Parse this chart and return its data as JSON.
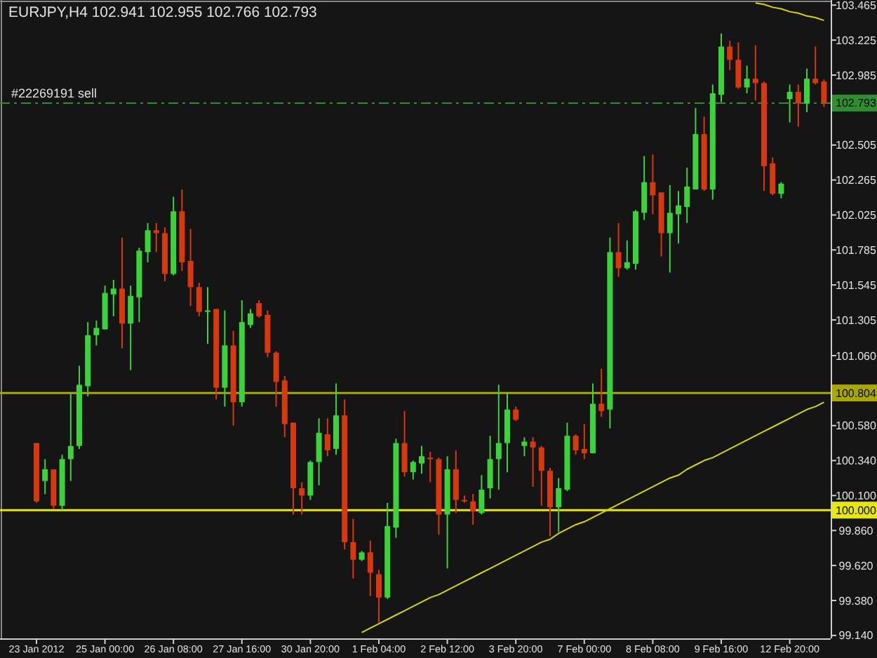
{
  "chart_data": {
    "type": "candlestick",
    "title": "EURJPY,H4  102.941 102.955 102.766 102.793",
    "categories": [
      "23 Jan 2012",
      null,
      null,
      null,
      null,
      null,
      null,
      null,
      "25 Jan 00:00",
      null,
      null,
      null,
      null,
      null,
      null,
      null,
      "26 Jan 08:00",
      null,
      null,
      null,
      null,
      null,
      null,
      null,
      "27 Jan 16:00",
      null,
      null,
      null,
      null,
      null,
      null,
      null,
      "30 Jan 20:00",
      null,
      null,
      null,
      null,
      null,
      null,
      null,
      "1 Feb 04:00",
      null,
      null,
      null,
      null,
      null,
      null,
      null,
      "2 Feb 12:00",
      null,
      null,
      null,
      null,
      null,
      null,
      null,
      "3 Feb 20:00",
      null,
      null,
      null,
      null,
      null,
      null,
      null,
      "7 Feb 00:00",
      null,
      null,
      null,
      null,
      null,
      null,
      null,
      "8 Feb 08:00",
      null,
      null,
      null,
      null,
      null,
      null,
      null,
      "9 Feb 16:00",
      null,
      null,
      null,
      null,
      null,
      null,
      null,
      "12 Feb 20:00",
      null,
      null,
      null,
      null
    ],
    "ohlc": [
      [
        100.46,
        100.46,
        100.05,
        100.06
      ],
      [
        100.2,
        100.35,
        100.11,
        100.28
      ],
      [
        100.28,
        100.28,
        100.01,
        100.03
      ],
      [
        100.03,
        100.38,
        100.0,
        100.35
      ],
      [
        100.35,
        100.8,
        100.2,
        100.44
      ],
      [
        100.44,
        100.99,
        100.42,
        100.86
      ],
      [
        100.85,
        101.29,
        100.78,
        101.2
      ],
      [
        101.2,
        101.3,
        101.13,
        101.25
      ],
      [
        101.24,
        101.54,
        101.24,
        101.49
      ],
      [
        101.48,
        101.58,
        101.33,
        101.52
      ],
      [
        101.52,
        101.87,
        101.11,
        101.28
      ],
      [
        101.28,
        101.54,
        100.96,
        101.47
      ],
      [
        101.46,
        101.8,
        101.29,
        101.78
      ],
      [
        101.77,
        101.97,
        101.7,
        101.92
      ],
      [
        101.92,
        101.97,
        101.77,
        101.9
      ],
      [
        101.9,
        101.94,
        101.57,
        101.62
      ],
      [
        101.62,
        102.15,
        101.61,
        102.05
      ],
      [
        102.05,
        102.2,
        101.64,
        101.7
      ],
      [
        101.71,
        101.93,
        101.4,
        101.53
      ],
      [
        101.53,
        101.56,
        101.33,
        101.36
      ],
      [
        101.36,
        101.53,
        101.14,
        101.37
      ],
      [
        101.38,
        101.38,
        100.76,
        100.84
      ],
      [
        100.84,
        101.37,
        100.71,
        101.13
      ],
      [
        101.13,
        101.23,
        100.58,
        100.74
      ],
      [
        100.74,
        101.44,
        100.71,
        101.29
      ],
      [
        101.27,
        101.38,
        101.25,
        101.35
      ],
      [
        101.42,
        101.44,
        101.32,
        101.33
      ],
      [
        101.34,
        101.37,
        101.05,
        101.08
      ],
      [
        101.08,
        101.09,
        100.71,
        100.88
      ],
      [
        100.89,
        100.92,
        100.5,
        100.59
      ],
      [
        100.6,
        100.6,
        99.97,
        100.15
      ],
      [
        100.15,
        100.19,
        99.97,
        100.1
      ],
      [
        100.1,
        100.34,
        100.07,
        100.33
      ],
      [
        100.33,
        100.63,
        100.17,
        100.53
      ],
      [
        100.52,
        100.63,
        100.37,
        100.41
      ],
      [
        100.42,
        100.87,
        100.38,
        100.65
      ],
      [
        100.65,
        100.76,
        99.73,
        99.78
      ],
      [
        99.78,
        99.94,
        99.53,
        99.66
      ],
      [
        99.66,
        99.72,
        99.65,
        99.71
      ],
      [
        99.71,
        99.79,
        99.41,
        99.57
      ],
      [
        99.56,
        99.59,
        99.23,
        99.4
      ],
      [
        99.4,
        100.05,
        99.39,
        99.89
      ],
      [
        99.88,
        100.49,
        99.81,
        100.46
      ],
      [
        100.46,
        100.68,
        100.23,
        100.26
      ],
      [
        100.26,
        100.34,
        100.21,
        100.33
      ],
      [
        100.32,
        100.44,
        100.25,
        100.37
      ],
      [
        100.36,
        100.4,
        100.19,
        100.35
      ],
      [
        100.35,
        100.36,
        99.83,
        99.97
      ],
      [
        99.97,
        100.37,
        99.6,
        100.28
      ],
      [
        100.28,
        100.41,
        99.98,
        100.07
      ],
      [
        100.07,
        100.1,
        100.05,
        100.06
      ],
      [
        100.06,
        100.11,
        99.9,
        99.99
      ],
      [
        99.98,
        100.24,
        99.97,
        100.14
      ],
      [
        100.15,
        100.51,
        100.08,
        100.35
      ],
      [
        100.35,
        100.86,
        100.14,
        100.46
      ],
      [
        100.46,
        100.8,
        100.26,
        100.69
      ],
      [
        100.69,
        100.71,
        100.61,
        100.62
      ],
      [
        100.44,
        100.5,
        100.37,
        100.47
      ],
      [
        100.47,
        100.5,
        100.16,
        100.43
      ],
      [
        100.43,
        100.44,
        100.03,
        100.27
      ],
      [
        100.27,
        100.29,
        99.82,
        100.02
      ],
      [
        100.02,
        100.22,
        99.85,
        100.15
      ],
      [
        100.14,
        100.6,
        100.13,
        100.51
      ],
      [
        100.51,
        100.52,
        100.38,
        100.41
      ],
      [
        100.42,
        100.59,
        100.35,
        100.39
      ],
      [
        100.39,
        100.87,
        100.39,
        100.73
      ],
      [
        100.73,
        100.97,
        100.64,
        100.68
      ],
      [
        100.69,
        101.87,
        100.56,
        101.77
      ],
      [
        101.77,
        101.97,
        101.6,
        101.66
      ],
      [
        101.66,
        101.85,
        101.65,
        101.7
      ],
      [
        101.69,
        102.06,
        101.65,
        102.05
      ],
      [
        102.04,
        102.43,
        101.99,
        102.25
      ],
      [
        102.25,
        102.44,
        102.03,
        102.16
      ],
      [
        102.18,
        102.18,
        101.74,
        101.9
      ],
      [
        101.9,
        102.23,
        101.63,
        102.04
      ],
      [
        102.03,
        102.19,
        101.83,
        102.09
      ],
      [
        102.08,
        102.35,
        101.97,
        102.22
      ],
      [
        102.2,
        102.76,
        102.2,
        102.58
      ],
      [
        102.58,
        102.7,
        102.19,
        102.2
      ],
      [
        102.2,
        102.92,
        102.13,
        102.86
      ],
      [
        102.85,
        103.27,
        102.8,
        103.18
      ],
      [
        103.18,
        103.22,
        103.02,
        103.09
      ],
      [
        103.09,
        103.21,
        102.89,
        102.9
      ],
      [
        102.9,
        103.05,
        102.86,
        102.96
      ],
      [
        102.96,
        103.19,
        102.81,
        102.93
      ],
      [
        102.93,
        102.94,
        102.19,
        102.36
      ],
      [
        102.38,
        102.42,
        102.16,
        102.17
      ],
      [
        102.17,
        102.25,
        102.14,
        102.24
      ],
      [
        102.82,
        102.92,
        102.66,
        102.87
      ],
      [
        102.87,
        102.92,
        102.63,
        102.79
      ],
      [
        102.79,
        103.03,
        102.73,
        102.96
      ],
      [
        102.96,
        103.18,
        102.92,
        102.93
      ],
      [
        102.941,
        102.955,
        102.766,
        102.793
      ]
    ],
    "colors": [
      "#d8380e",
      "#3cd23c",
      "#d8380e",
      "#3cd23c",
      "#3cd23c",
      "#3cd23c",
      "#3cd23c",
      "#3cd23c",
      "#3cd23c",
      "#3cd23c",
      "#d8380e",
      "#3cd23c",
      "#3cd23c",
      "#3cd23c",
      "#d8380e",
      "#d8380e",
      "#3cd23c",
      "#d8380e",
      "#d8380e",
      "#d8380e",
      "#3cd23c",
      "#d8380e",
      "#3cd23c",
      "#d8380e",
      "#3cd23c",
      "#3cd23c",
      "#d8380e",
      "#d8380e",
      "#d8380e",
      "#d8380e",
      "#d8380e",
      "#d8380e",
      "#3cd23c",
      "#3cd23c",
      "#d8380e",
      "#3cd23c",
      "#d8380e",
      "#d8380e",
      "#3cd23c",
      "#d8380e",
      "#d8380e",
      "#3cd23c",
      "#3cd23c",
      "#d8380e",
      "#3cd23c",
      "#3cd23c",
      "#d8380e",
      "#d8380e",
      "#3cd23c",
      "#d8380e",
      "#d8380e",
      "#d8380e",
      "#3cd23c",
      "#3cd23c",
      "#3cd23c",
      "#3cd23c",
      "#d8380e",
      "#3cd23c",
      "#d8380e",
      "#d8380e",
      "#d8380e",
      "#3cd23c",
      "#3cd23c",
      "#d8380e",
      "#d8380e",
      "#3cd23c",
      "#d8380e",
      "#3cd23c",
      "#d8380e",
      "#3cd23c",
      "#3cd23c",
      "#3cd23c",
      "#d8380e",
      "#d8380e",
      "#3cd23c",
      "#3cd23c",
      "#3cd23c",
      "#3cd23c",
      "#d8380e",
      "#3cd23c",
      "#3cd23c",
      "#d8380e",
      "#d8380e",
      "#3cd23c",
      "#d8380e",
      "#d8380e",
      "#d8380e",
      "#3cd23c",
      "#3cd23c",
      "#d8380e",
      "#3cd23c",
      "#d8380e",
      "#d8380e"
    ],
    "series": [
      {
        "type": "line",
        "color": "#d6d600",
        "values": [
          null,
          null,
          null,
          null,
          null,
          null,
          null,
          null,
          null,
          null,
          null,
          null,
          null,
          null,
          null,
          null,
          null,
          null,
          null,
          null,
          null,
          null,
          null,
          null,
          null,
          null,
          null,
          null,
          null,
          null,
          null,
          null,
          null,
          null,
          null,
          null,
          null,
          null,
          99.16,
          99.19,
          99.22,
          99.25,
          99.28,
          99.31,
          99.34,
          99.37,
          99.4,
          99.42,
          99.45,
          99.48,
          99.51,
          99.54,
          99.57,
          99.6,
          99.63,
          99.66,
          99.69,
          99.72,
          99.75,
          99.78,
          99.8,
          99.84,
          99.87,
          99.9,
          99.92,
          99.95,
          99.98,
          100.01,
          100.04,
          100.07,
          100.1,
          100.13,
          100.16,
          100.19,
          100.22,
          100.24,
          100.28,
          100.31,
          100.34,
          100.36,
          100.39,
          100.42,
          100.45,
          100.48,
          100.51,
          100.54,
          100.57,
          100.6,
          100.63,
          100.66,
          100.69,
          100.71,
          100.74
        ]
      },
      {
        "type": "line",
        "color": "#d6d600",
        "values": [
          null,
          null,
          null,
          null,
          null,
          null,
          null,
          null,
          null,
          null,
          null,
          null,
          null,
          null,
          null,
          null,
          null,
          null,
          null,
          null,
          null,
          null,
          null,
          null,
          null,
          null,
          null,
          null,
          null,
          null,
          null,
          null,
          null,
          null,
          null,
          null,
          null,
          null,
          null,
          null,
          null,
          null,
          null,
          null,
          null,
          null,
          null,
          null,
          null,
          null,
          null,
          null,
          null,
          null,
          null,
          null,
          null,
          null,
          null,
          null,
          null,
          null,
          null,
          null,
          null,
          null,
          null,
          null,
          null,
          null,
          null,
          null,
          null,
          null,
          null,
          null,
          null,
          null,
          null,
          null,
          null,
          null,
          null,
          null,
          103.48,
          103.47,
          103.45,
          103.44,
          103.42,
          103.41,
          103.39,
          103.38,
          103.36
        ]
      }
    ],
    "ylim": [
      99.12,
      103.5
    ],
    "yticks": [
      103.465,
      103.225,
      102.985,
      102.505,
      102.265,
      102.025,
      101.785,
      101.545,
      101.305,
      {
        "value": 101.06,
        "label": "101.060"
      },
      {
        "value": 100.58,
        "label": "100.580"
      },
      {
        "value": 100.34,
        "label": "100.340"
      },
      {
        "value": 100.1,
        "label": "100.100"
      },
      {
        "value": 99.86,
        "label": "99.860"
      },
      {
        "value": 99.62,
        "label": "99.620"
      },
      {
        "value": 99.38,
        "label": "99.380"
      },
      {
        "value": 99.14,
        "label": "99.140"
      }
    ],
    "ref_lines": [
      {
        "axis": "y",
        "value": 102.793,
        "label": "102.793",
        "color": "#2f8f2f",
        "line_style": "dashed"
      },
      {
        "axis": "y",
        "value": 100.804,
        "label": "100.804",
        "color": "#a8a800",
        "line_style": "solid"
      },
      {
        "axis": "y",
        "value": 100.0,
        "label": "100.000",
        "color": "#e8e800",
        "line_style": "solid"
      }
    ],
    "annotations": [
      {
        "text": "#22269191 sell",
        "x": "23 Jan 2012",
        "y": 102.83
      }
    ]
  }
}
